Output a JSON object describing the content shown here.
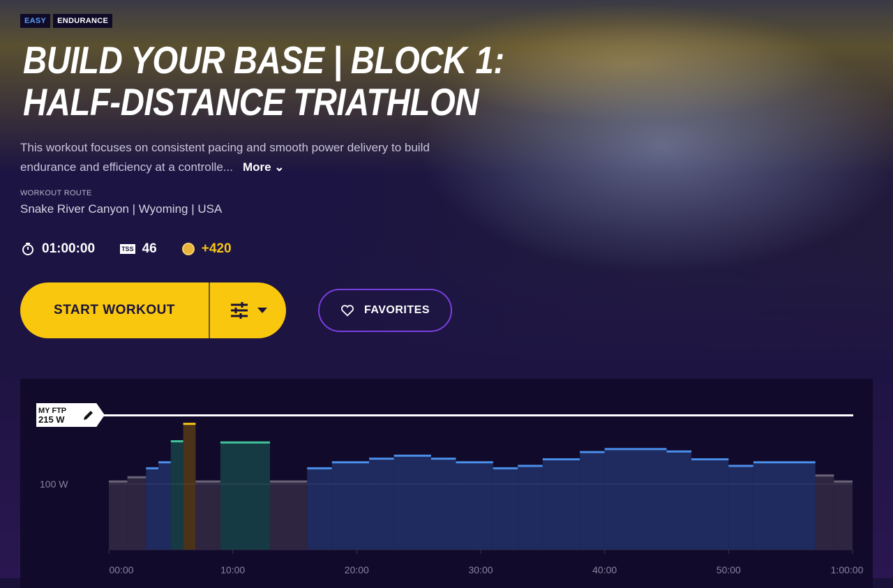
{
  "badges": [
    "EASY",
    "ENDURANCE"
  ],
  "title_line1": "BUILD YOUR BASE |  BLOCK 1:",
  "title_line2": "HALF-DISTANCE TRIATHLON",
  "description": "This workout focuses on consistent pacing and smooth power delivery to build endurance and efficiency at a controlle...",
  "more_label": "More",
  "route_label": "WORKOUT ROUTE",
  "route": "Snake River Canyon | Wyoming | USA",
  "stats": {
    "duration": "01:00:00",
    "tss_label": "TSS",
    "tss": "46",
    "coins": "+420"
  },
  "start_label": "START WORKOUT",
  "favorites_label": "FAVORITES",
  "colors": {
    "accent": "#f9c80e",
    "favorite_border": "#7a3fe0",
    "blue": "#4a8ee8",
    "green": "#3fc49a",
    "yellow": "#f5c518",
    "gray": "#6a6478"
  },
  "chart_data": {
    "type": "bar",
    "ftp_label": "MY FTP",
    "ftp_value": "215 W",
    "ftp": 215,
    "y_reference_label": "100 W",
    "x_ticks": [
      "00:00",
      "10:00",
      "20:00",
      "30:00",
      "40:00",
      "50:00",
      "1:00:00"
    ],
    "xlim_min": [
      0,
      60
    ],
    "segments": [
      {
        "start": 0,
        "end": 1.5,
        "watts": 106,
        "zone": "gray"
      },
      {
        "start": 1.5,
        "end": 3,
        "watts": 113,
        "zone": "gray"
      },
      {
        "start": 3,
        "end": 4,
        "watts": 128,
        "zone": "blue"
      },
      {
        "start": 4,
        "end": 5,
        "watts": 138,
        "zone": "blue"
      },
      {
        "start": 5,
        "end": 6,
        "watts": 173,
        "zone": "green"
      },
      {
        "start": 6,
        "end": 7,
        "watts": 202,
        "zone": "yellow"
      },
      {
        "start": 7,
        "end": 9,
        "watts": 106,
        "zone": "gray"
      },
      {
        "start": 9,
        "end": 13,
        "watts": 171,
        "zone": "green"
      },
      {
        "start": 13,
        "end": 16,
        "watts": 106,
        "zone": "gray"
      },
      {
        "start": 16,
        "end": 18,
        "watts": 128,
        "zone": "blue"
      },
      {
        "start": 18,
        "end": 21,
        "watts": 138,
        "zone": "blue"
      },
      {
        "start": 21,
        "end": 23,
        "watts": 144,
        "zone": "blue"
      },
      {
        "start": 23,
        "end": 26,
        "watts": 149,
        "zone": "blue"
      },
      {
        "start": 26,
        "end": 28,
        "watts": 144,
        "zone": "blue"
      },
      {
        "start": 28,
        "end": 31,
        "watts": 138,
        "zone": "blue"
      },
      {
        "start": 31,
        "end": 33,
        "watts": 128,
        "zone": "blue"
      },
      {
        "start": 33,
        "end": 35,
        "watts": 132,
        "zone": "blue"
      },
      {
        "start": 35,
        "end": 38,
        "watts": 143,
        "zone": "blue"
      },
      {
        "start": 38,
        "end": 40,
        "watts": 155,
        "zone": "blue"
      },
      {
        "start": 40,
        "end": 45,
        "watts": 160,
        "zone": "blue"
      },
      {
        "start": 45,
        "end": 47,
        "watts": 156,
        "zone": "blue"
      },
      {
        "start": 47,
        "end": 50,
        "watts": 143,
        "zone": "blue"
      },
      {
        "start": 50,
        "end": 52,
        "watts": 132,
        "zone": "blue"
      },
      {
        "start": 52,
        "end": 57,
        "watts": 138,
        "zone": "blue"
      },
      {
        "start": 57,
        "end": 58.5,
        "watts": 116,
        "zone": "gray"
      },
      {
        "start": 58.5,
        "end": 60,
        "watts": 106,
        "zone": "gray"
      }
    ]
  }
}
